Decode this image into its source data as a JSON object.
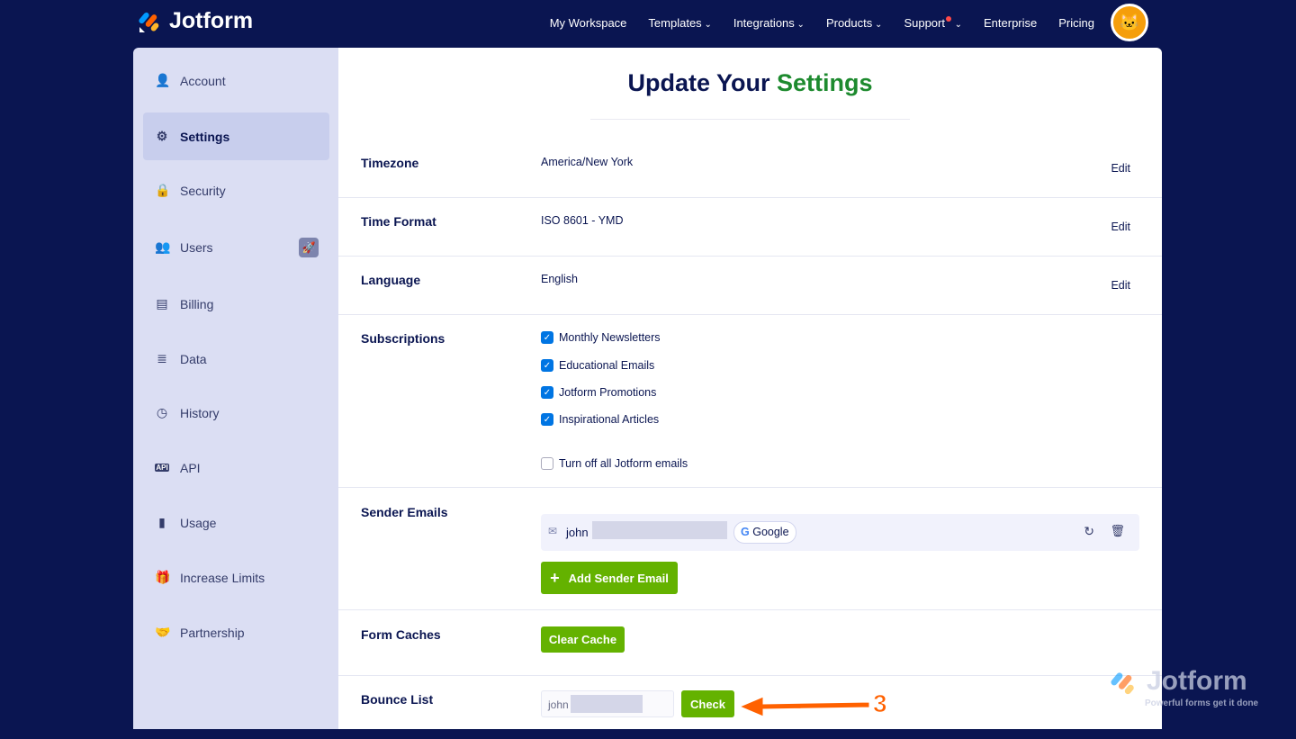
{
  "brand": {
    "name": "Jotform"
  },
  "nav": {
    "items": [
      "My Workspace",
      "Templates",
      "Integrations",
      "Products",
      "Support",
      "Enterprise",
      "Pricing"
    ]
  },
  "sidebar": {
    "items": [
      {
        "label": "Account",
        "icon": "user-icon"
      },
      {
        "label": "Settings",
        "icon": "gear-icon"
      },
      {
        "label": "Security",
        "icon": "lock-icon"
      },
      {
        "label": "Users",
        "icon": "users-icon"
      },
      {
        "label": "Billing",
        "icon": "billing-icon"
      },
      {
        "label": "Data",
        "icon": "database-icon"
      },
      {
        "label": "History",
        "icon": "history-icon"
      },
      {
        "label": "API",
        "icon": "api-icon"
      },
      {
        "label": "Usage",
        "icon": "chart-icon"
      },
      {
        "label": "Increase Limits",
        "icon": "gift-icon"
      },
      {
        "label": "Partnership",
        "icon": "handshake-icon"
      }
    ]
  },
  "main": {
    "title_a": "Update Your",
    "title_b": "Settings",
    "timezone": {
      "label": "Timezone",
      "value": "America/New York",
      "edit": "Edit"
    },
    "time_format": {
      "label": "Time Format",
      "value": "ISO 8601 - YMD",
      "edit": "Edit"
    },
    "language": {
      "label": "Language",
      "value": "English",
      "edit": "Edit"
    },
    "subscriptions": {
      "label": "Subscriptions",
      "items": [
        "Monthly Newsletters",
        "Educational Emails",
        "Jotform Promotions",
        "Inspirational Articles"
      ],
      "off_label": "Turn off all Jotform emails"
    },
    "sender": {
      "label": "Sender Emails",
      "email": "john",
      "provider": "Google",
      "add": "Add Sender Email"
    },
    "caches": {
      "label": "Form Caches",
      "button": "Clear Cache"
    },
    "bounce": {
      "label": "Bounce List",
      "value": "john",
      "button": "Check"
    }
  },
  "annotation": {
    "step": "3",
    "color": "#ff6100"
  },
  "watermark": {
    "name": "Jotform",
    "tagline": "Powerful forms get it done"
  }
}
